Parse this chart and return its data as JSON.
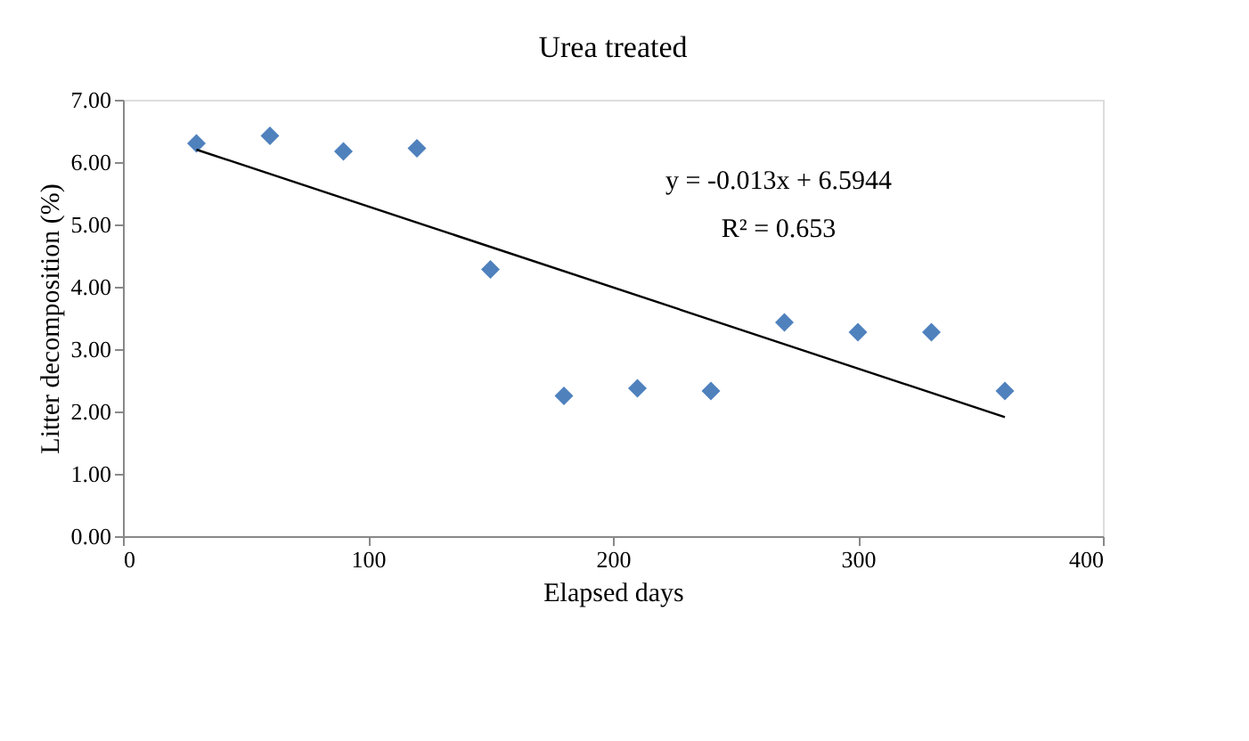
{
  "chart_data": {
    "type": "scatter",
    "title": "Urea treated",
    "xlabel": "Elapsed days",
    "ylabel": "Litter decomposition (%)",
    "x": [
      30,
      60,
      90,
      120,
      150,
      180,
      210,
      240,
      270,
      300,
      330,
      360
    ],
    "series": [
      {
        "color": "#4f81bd",
        "marker": "diamond",
        "values": [
          6.3,
          6.42,
          6.17,
          6.22,
          4.28,
          2.25,
          2.37,
          2.33,
          3.43,
          3.27,
          3.27,
          2.33
        ]
      },
      {
        "type": "line",
        "color": "#000000",
        "x": [
          30,
          360
        ],
        "values": [
          6.2,
          1.91
        ],
        "marker": "none",
        "line_style": "solid"
      }
    ],
    "annotations": [
      "y = -0.013x + 6.5944",
      "R² = 0.653"
    ],
    "xlim": [
      0,
      400
    ],
    "xticks": [
      0,
      100,
      200,
      300,
      400
    ],
    "ylim": [
      0,
      7
    ],
    "yticks": [
      {
        "value": 0,
        "label": "0.00"
      },
      {
        "value": 1,
        "label": "1.00"
      },
      {
        "value": 2,
        "label": "2.00"
      },
      {
        "value": 3,
        "label": "3.00"
      },
      {
        "value": 4,
        "label": "4.00"
      },
      {
        "value": 5,
        "label": "5.00"
      },
      {
        "value": 6,
        "label": "6.00"
      },
      {
        "value": 7,
        "label": "7.00"
      }
    ],
    "grid": false
  }
}
